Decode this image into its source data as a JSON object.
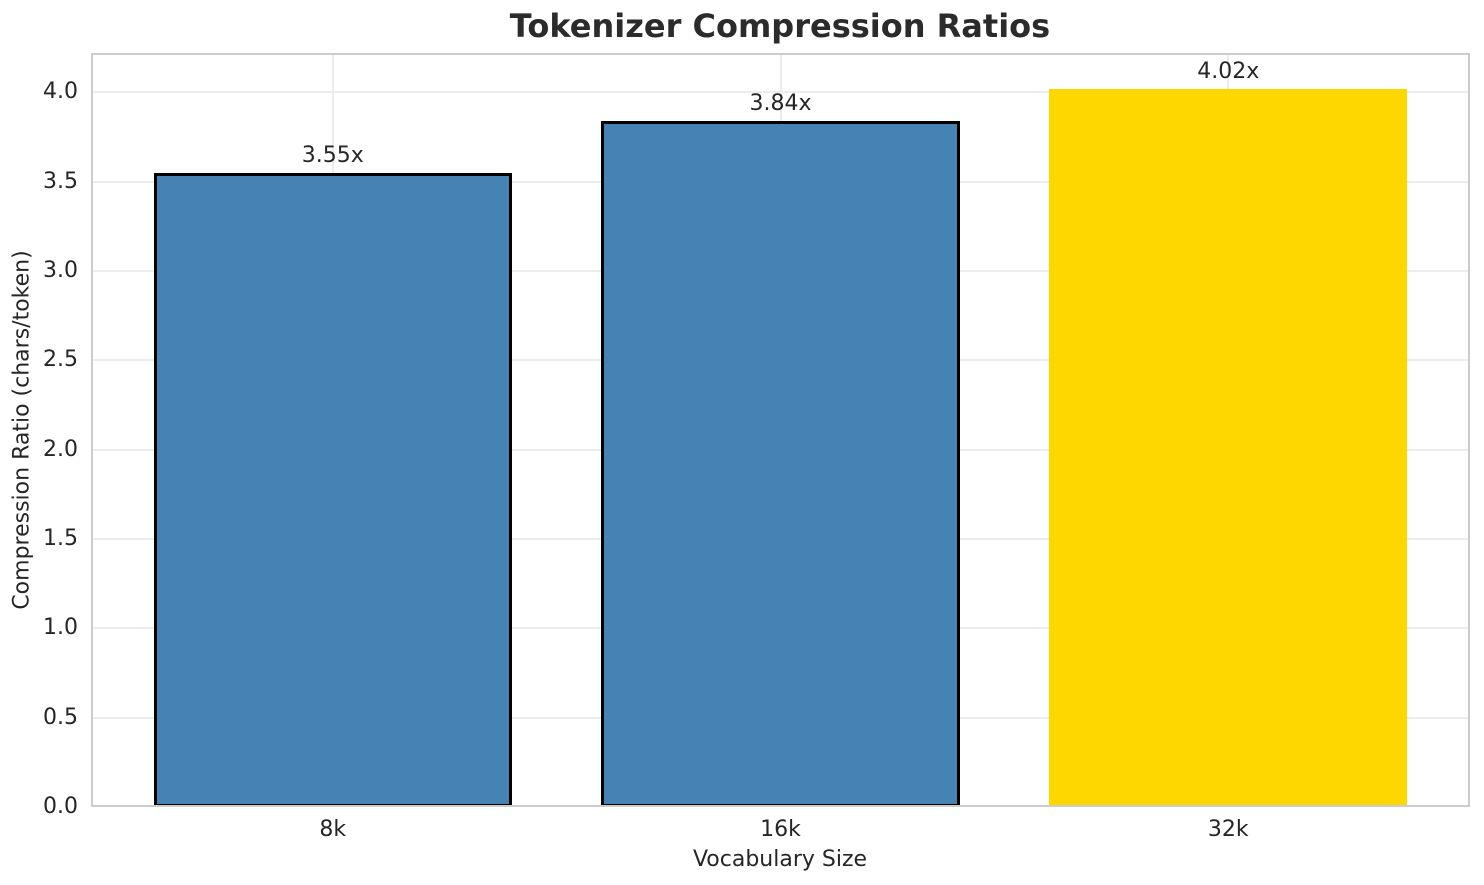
{
  "chart_data": {
    "type": "bar",
    "title": "Tokenizer Compression Ratios",
    "xlabel": "Vocabulary Size",
    "ylabel": "Compression Ratio (chars/token)",
    "categories": [
      "8k",
      "16k",
      "32k"
    ],
    "values": [
      3.55,
      3.84,
      4.02
    ],
    "bar_labels": [
      "3.55x",
      "3.84x",
      "4.02x"
    ],
    "bar_colors": [
      "#4682B4",
      "#4682B4",
      "#FFD700"
    ],
    "bar_edge_colors": [
      "#000000",
      "#000000",
      "#FFD700"
    ],
    "ytick_values": [
      0.0,
      0.5,
      1.0,
      1.5,
      2.0,
      2.5,
      3.0,
      3.5,
      4.0
    ],
    "ytick_labels": [
      "0.0",
      "0.5",
      "1.0",
      "1.5",
      "2.0",
      "2.5",
      "3.0",
      "3.5",
      "4.0"
    ],
    "ylim": [
      0,
      4.221
    ],
    "grid": true,
    "legend_position": "none",
    "colors": {
      "grid": "#ededed",
      "spine": "#cccccc",
      "text": "#262626"
    }
  }
}
